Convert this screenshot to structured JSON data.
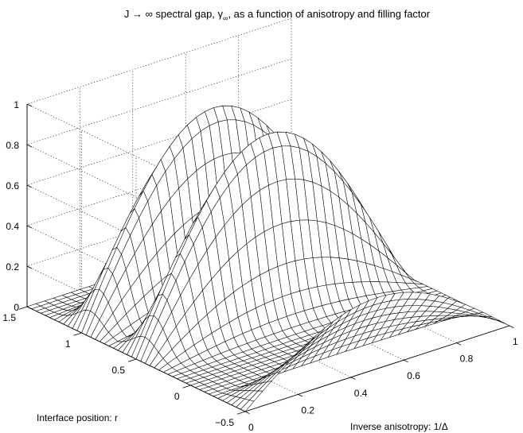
{
  "chart_data": {
    "type": "surface",
    "title_main": "J → ∞ spectral gap, γ",
    "title_sub": "∞",
    "title_rest": ", as a function of anisotropy and filling factor",
    "xlabel": "Inverse anisotropy: 1/Δ",
    "ylabel": "Interface position: r",
    "zlabel": "",
    "xlim": [
      0,
      1
    ],
    "ylim": [
      -0.5,
      1.5
    ],
    "zlim": [
      0,
      1
    ],
    "x_ticks": [
      "0",
      "0.2",
      "0.4",
      "0.6",
      "0.8",
      "1"
    ],
    "y_ticks": [
      "−0.5",
      "0",
      "0.5",
      "1",
      "1.5"
    ],
    "z_ticks": [
      "0",
      "0.2",
      "0.4",
      "0.6",
      "0.8",
      "1"
    ],
    "grid": true,
    "mesh_color": "#000000",
    "surface_fill": "#ffffff",
    "features": {
      "ridges_along_r": [
        0.5,
        1.0
      ],
      "ridge_peak_gamma": 0.9,
      "outer_edge_r": -0.5,
      "outer_edge_gamma": 0.27,
      "contour_projection_on_floor": true
    }
  }
}
